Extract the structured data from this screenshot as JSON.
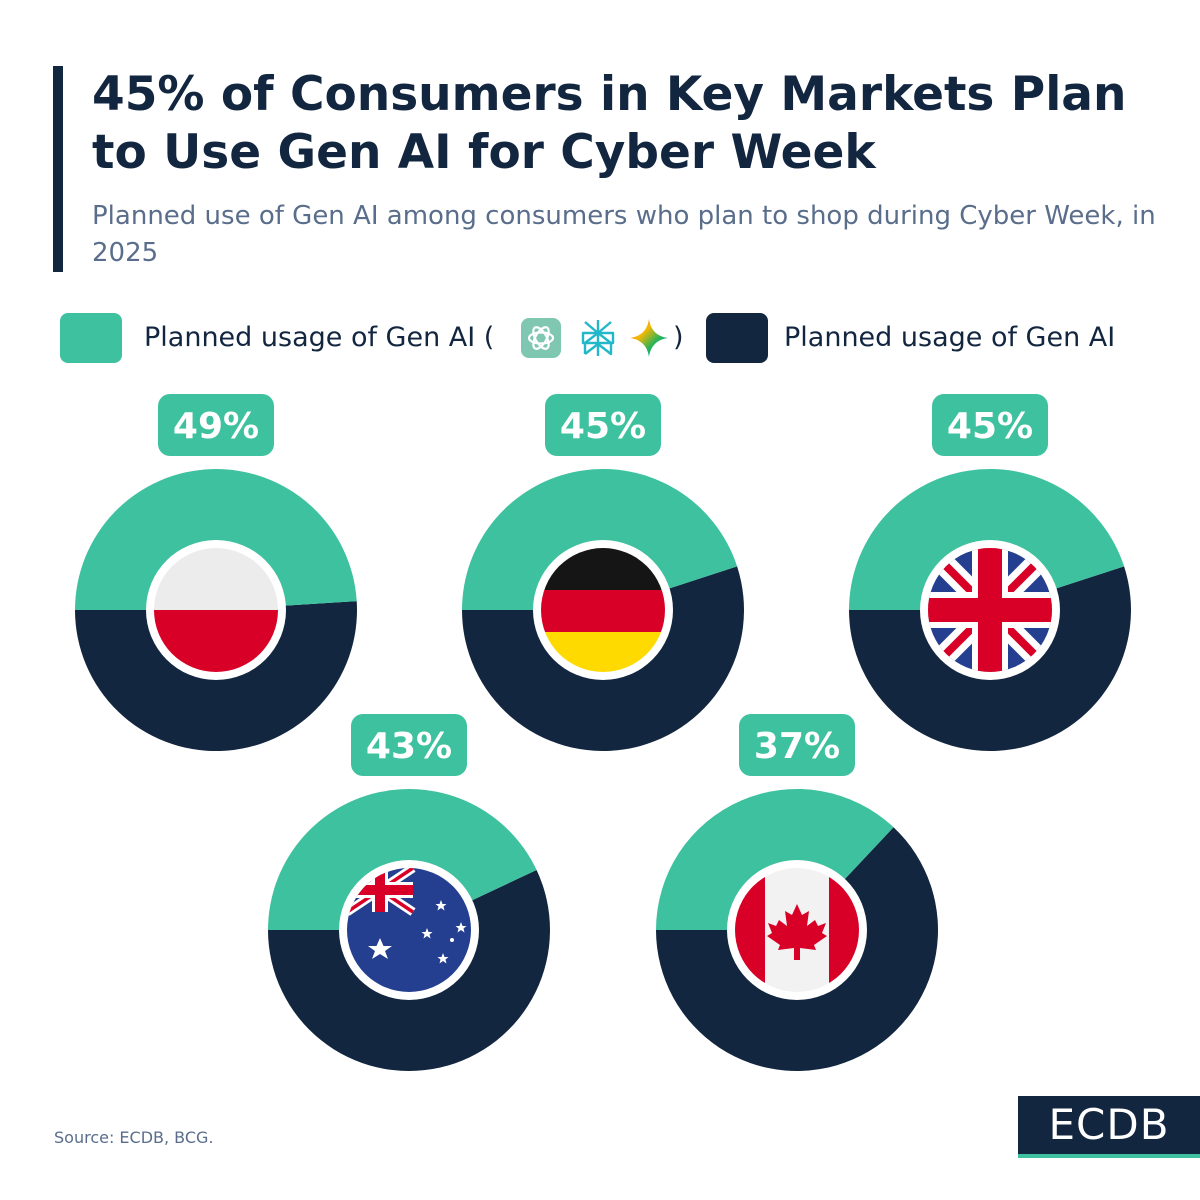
{
  "header": {
    "title": "45% of Consumers in Key Markets Plan to Use Gen AI for Cyber Week",
    "subtitle": "Planned use of Gen AI among consumers who plan to shop during Cyber Week, in 2025"
  },
  "legend": {
    "gen_ai_tools_label": "Planned usage of Gen AI (",
    "gen_ai_tools_close": ")",
    "gen_ai_label": "Planned usage of Gen AI",
    "tool_icons": [
      "chatgpt-icon",
      "perplexity-icon",
      "gemini-icon"
    ]
  },
  "colors": {
    "green": "#3ec19e",
    "navy": "#13263f",
    "white": "#ffffff"
  },
  "chart_data": {
    "type": "pie",
    "title": "45% of Consumers in Key Markets Plan to Use Gen AI for Cyber Week",
    "series_names": [
      "Planned usage of Gen AI (ChatGPT, Perplexity, Gemini)",
      "Planned usage of Gen AI"
    ],
    "countries": [
      {
        "country": "Poland",
        "flag": "poland-flag",
        "value": 49,
        "label": "49%"
      },
      {
        "country": "Germany",
        "flag": "germany-flag",
        "value": 45,
        "label": "45%"
      },
      {
        "country": "United Kingdom",
        "flag": "uk-flag",
        "value": 45,
        "label": "45%"
      },
      {
        "country": "Australia",
        "flag": "australia-flag",
        "value": 43,
        "label": "43%"
      },
      {
        "country": "Canada",
        "flag": "canada-flag",
        "value": 37,
        "label": "37%"
      }
    ]
  },
  "footer": {
    "source": "Source: ECDB, BCG.",
    "brand": "ECDB"
  }
}
